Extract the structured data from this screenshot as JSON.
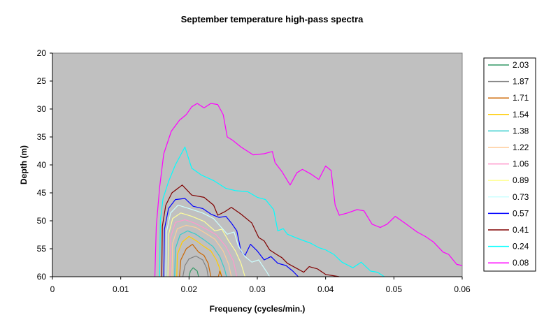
{
  "chart_data": {
    "type": "line",
    "title": "September temperature high-pass spectra",
    "xlabel": "Frequency (cycles/min.)",
    "ylabel": "Depth (m)",
    "xlim": [
      0,
      0.06
    ],
    "ylim": [
      20,
      60
    ],
    "y_inverted": true,
    "x_ticks": [
      "0",
      "0.01",
      "0.02",
      "0.03",
      "0.04",
      "0.05",
      "0.06"
    ],
    "y_ticks": [
      "20",
      "25",
      "30",
      "35",
      "40",
      "45",
      "50",
      "55",
      "60"
    ],
    "plot_background": "#c0c0c0",
    "grid": false,
    "legend_position": "right",
    "series": [
      {
        "name": "2.03",
        "color": "#339966",
        "points": [
          [
            0.02,
            60
          ],
          [
            0.0202,
            59
          ],
          [
            0.0206,
            58.4
          ],
          [
            0.0212,
            59
          ],
          [
            0.0214,
            60
          ]
        ]
      },
      {
        "name": "1.87",
        "color": "#808080",
        "points": [
          [
            0.0191,
            60
          ],
          [
            0.0194,
            58
          ],
          [
            0.02,
            56.8
          ],
          [
            0.021,
            56.3
          ],
          [
            0.022,
            57
          ],
          [
            0.0226,
            58.5
          ],
          [
            0.0228,
            60
          ]
        ]
      },
      {
        "name": "1.71",
        "color": "#cc6600",
        "points": [
          [
            0.0186,
            60
          ],
          [
            0.0188,
            57
          ],
          [
            0.0196,
            55
          ],
          [
            0.0205,
            54.2
          ],
          [
            0.0214,
            55.6
          ],
          [
            0.0222,
            56.2
          ],
          [
            0.0228,
            57.6
          ],
          [
            0.0232,
            60
          ],
          [
            0.0243,
            60
          ],
          [
            0.0245,
            59
          ],
          [
            0.0248,
            60
          ]
        ]
      },
      {
        "name": "1.54",
        "color": "#ffcc00",
        "points": [
          [
            0.0182,
            60
          ],
          [
            0.0183,
            56
          ],
          [
            0.019,
            53.8
          ],
          [
            0.02,
            52.8
          ],
          [
            0.0211,
            53.6
          ],
          [
            0.0222,
            54.6
          ],
          [
            0.0232,
            55.4
          ],
          [
            0.024,
            57
          ],
          [
            0.0244,
            58.2
          ],
          [
            0.0248,
            60
          ]
        ]
      },
      {
        "name": "1.38",
        "color": "#33cccc",
        "points": [
          [
            0.0179,
            60
          ],
          [
            0.018,
            55
          ],
          [
            0.0187,
            52.5
          ],
          [
            0.0198,
            51.8
          ],
          [
            0.021,
            52.4
          ],
          [
            0.0222,
            53.4
          ],
          [
            0.0235,
            54.6
          ],
          [
            0.0245,
            56.4
          ],
          [
            0.0252,
            58.6
          ],
          [
            0.0255,
            60
          ]
        ]
      },
      {
        "name": "1.22",
        "color": "#ffcc99",
        "points": [
          [
            0.0175,
            60
          ],
          [
            0.0176,
            54
          ],
          [
            0.0183,
            51.4
          ],
          [
            0.0196,
            50.8
          ],
          [
            0.021,
            51.2
          ],
          [
            0.0224,
            52.2
          ],
          [
            0.0238,
            53.3
          ],
          [
            0.025,
            55.4
          ],
          [
            0.0258,
            57.8
          ],
          [
            0.0262,
            60
          ]
        ]
      },
      {
        "name": "1.06",
        "color": "#ff99cc",
        "points": [
          [
            0.0172,
            60
          ],
          [
            0.0173,
            53
          ],
          [
            0.018,
            50.3
          ],
          [
            0.0194,
            49.8
          ],
          [
            0.0208,
            50.4
          ],
          [
            0.0224,
            51.4
          ],
          [
            0.024,
            52.5
          ],
          [
            0.0254,
            54.6
          ],
          [
            0.0265,
            57.2
          ],
          [
            0.027,
            60
          ]
        ]
      },
      {
        "name": "0.89",
        "color": "#ffff99",
        "points": [
          [
            0.0169,
            60
          ],
          [
            0.017,
            52.5
          ],
          [
            0.0176,
            49.6
          ],
          [
            0.0188,
            48.6
          ],
          [
            0.0204,
            49.2
          ],
          [
            0.0222,
            50.1
          ],
          [
            0.0238,
            51.8
          ],
          [
            0.0248,
            51.5
          ],
          [
            0.0258,
            53.6
          ],
          [
            0.0268,
            55.4
          ],
          [
            0.0276,
            57.6
          ],
          [
            0.0282,
            60
          ]
        ]
      },
      {
        "name": "0.73",
        "color": "#ccffff",
        "points": [
          [
            0.0166,
            60
          ],
          [
            0.0167,
            52
          ],
          [
            0.0173,
            48.6
          ],
          [
            0.0184,
            47.2
          ],
          [
            0.02,
            47.8
          ],
          [
            0.022,
            48.6
          ],
          [
            0.0236,
            49.6
          ],
          [
            0.0246,
            51
          ],
          [
            0.0256,
            52.4
          ],
          [
            0.0266,
            52
          ],
          [
            0.0272,
            54.5
          ],
          [
            0.0282,
            56.4
          ],
          [
            0.0292,
            57.4
          ],
          [
            0.0302,
            57
          ],
          [
            0.0314,
            59.2
          ],
          [
            0.0318,
            60
          ]
        ]
      },
      {
        "name": "0.57",
        "color": "#0000ff",
        "points": [
          [
            0.0163,
            60
          ],
          [
            0.0164,
            51.5
          ],
          [
            0.017,
            47.8
          ],
          [
            0.018,
            46.2
          ],
          [
            0.0194,
            46
          ],
          [
            0.0206,
            47.4
          ],
          [
            0.022,
            47.8
          ],
          [
            0.0232,
            48.8
          ],
          [
            0.0244,
            49.4
          ],
          [
            0.0254,
            49.2
          ],
          [
            0.0262,
            50.4
          ],
          [
            0.027,
            51.8
          ],
          [
            0.0276,
            55.4
          ],
          [
            0.0282,
            56.2
          ],
          [
            0.029,
            54.2
          ],
          [
            0.03,
            55.4
          ],
          [
            0.031,
            57
          ],
          [
            0.032,
            56.4
          ],
          [
            0.033,
            57.6
          ],
          [
            0.0342,
            58
          ],
          [
            0.0352,
            59
          ],
          [
            0.036,
            60
          ]
        ]
      },
      {
        "name": "0.41",
        "color": "#800000",
        "points": [
          [
            0.016,
            60
          ],
          [
            0.0161,
            51
          ],
          [
            0.0166,
            47.2
          ],
          [
            0.0175,
            45
          ],
          [
            0.019,
            43.6
          ],
          [
            0.0204,
            45.4
          ],
          [
            0.0222,
            45.8
          ],
          [
            0.0236,
            47.2
          ],
          [
            0.0242,
            49
          ],
          [
            0.0252,
            48.4
          ],
          [
            0.0262,
            47.6
          ],
          [
            0.0276,
            48.8
          ],
          [
            0.0292,
            50.4
          ],
          [
            0.0302,
            53
          ],
          [
            0.031,
            53.6
          ],
          [
            0.0318,
            55.2
          ],
          [
            0.0328,
            56
          ],
          [
            0.0336,
            56.6
          ],
          [
            0.0344,
            57.6
          ],
          [
            0.0356,
            58.4
          ],
          [
            0.0368,
            59.2
          ],
          [
            0.0376,
            58.2
          ],
          [
            0.0388,
            58.6
          ],
          [
            0.04,
            59.6
          ],
          [
            0.041,
            59.8
          ],
          [
            0.042,
            60
          ]
        ]
      },
      {
        "name": "0.24",
        "color": "#00ffff",
        "points": [
          [
            0.0157,
            60
          ],
          [
            0.0158,
            50
          ],
          [
            0.0162,
            46
          ],
          [
            0.017,
            43
          ],
          [
            0.018,
            40
          ],
          [
            0.0194,
            36.8
          ],
          [
            0.0204,
            40.6
          ],
          [
            0.0218,
            41.8
          ],
          [
            0.0236,
            42.8
          ],
          [
            0.0254,
            44.2
          ],
          [
            0.0268,
            44.6
          ],
          [
            0.0286,
            44.8
          ],
          [
            0.03,
            45.8
          ],
          [
            0.0312,
            46.2
          ],
          [
            0.0324,
            48
          ],
          [
            0.033,
            51.8
          ],
          [
            0.0338,
            51.4
          ],
          [
            0.0344,
            52.4
          ],
          [
            0.036,
            53.2
          ],
          [
            0.0378,
            54
          ],
          [
            0.039,
            54.8
          ],
          [
            0.04,
            55.2
          ],
          [
            0.0412,
            56
          ],
          [
            0.0424,
            57.4
          ],
          [
            0.044,
            58.4
          ],
          [
            0.0452,
            57.4
          ],
          [
            0.0466,
            59
          ],
          [
            0.0476,
            59.2
          ],
          [
            0.0486,
            60
          ]
        ]
      },
      {
        "name": "0.08",
        "color": "#ff00ff",
        "points": [
          [
            0.015,
            60
          ],
          [
            0.0152,
            51
          ],
          [
            0.0157,
            44
          ],
          [
            0.0163,
            38
          ],
          [
            0.0174,
            34
          ],
          [
            0.0186,
            32
          ],
          [
            0.0196,
            31
          ],
          [
            0.0204,
            29.6
          ],
          [
            0.0212,
            29
          ],
          [
            0.0222,
            29.8
          ],
          [
            0.0232,
            29
          ],
          [
            0.0242,
            29.2
          ],
          [
            0.025,
            31
          ],
          [
            0.0256,
            35
          ],
          [
            0.0264,
            35.6
          ],
          [
            0.0276,
            36.8
          ],
          [
            0.0294,
            38.2
          ],
          [
            0.031,
            38
          ],
          [
            0.0322,
            37.6
          ],
          [
            0.0326,
            39.6
          ],
          [
            0.0336,
            41.2
          ],
          [
            0.0348,
            43.6
          ],
          [
            0.0358,
            41.4
          ],
          [
            0.0366,
            40.8
          ],
          [
            0.0378,
            41.6
          ],
          [
            0.039,
            42.6
          ],
          [
            0.04,
            40.2
          ],
          [
            0.0408,
            41
          ],
          [
            0.0414,
            47.2
          ],
          [
            0.042,
            49
          ],
          [
            0.0432,
            48.6
          ],
          [
            0.0446,
            48
          ],
          [
            0.0456,
            48.2
          ],
          [
            0.0468,
            50.6
          ],
          [
            0.048,
            51.2
          ],
          [
            0.049,
            50.6
          ],
          [
            0.0502,
            49.2
          ],
          [
            0.0516,
            50.4
          ],
          [
            0.0534,
            52
          ],
          [
            0.0546,
            52.8
          ],
          [
            0.0558,
            53.8
          ],
          [
            0.0572,
            55.6
          ],
          [
            0.058,
            56
          ],
          [
            0.0592,
            57.8
          ],
          [
            0.06,
            58
          ]
        ]
      }
    ]
  }
}
